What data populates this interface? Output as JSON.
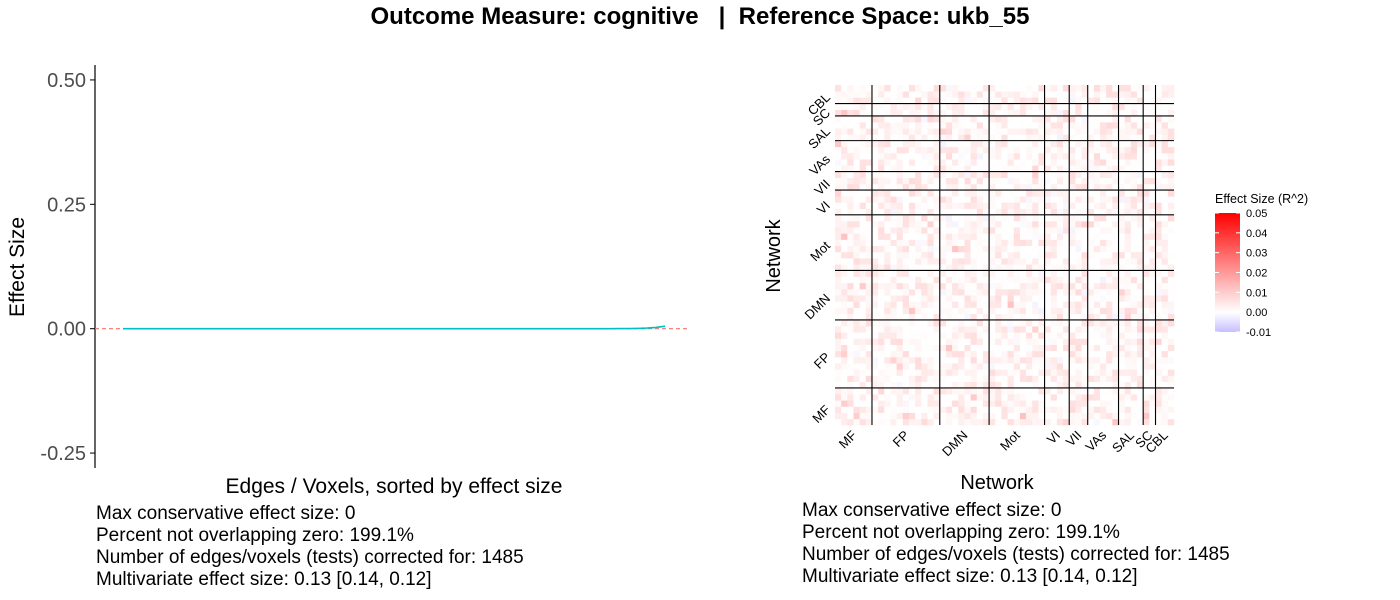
{
  "title": "Outcome Measure: cognitive   |  Reference Space: ukb_55",
  "colors": {
    "zero_line": "#F8766D",
    "ci_line": "#00BFC4",
    "heat_low": "#C7BFFF",
    "heat_mid": "#FFFFFF",
    "heat_high": "#FF0000",
    "grid_line": "#000000"
  },
  "chart_data": [
    {
      "type": "line",
      "title": "",
      "xlabel": "Edges / Voxels, sorted by effect size",
      "ylabel": "Effect Size",
      "ylim": [
        -0.28,
        0.53
      ],
      "yticks": [
        -0.25,
        0.0,
        0.25,
        0.5
      ],
      "ytick_labels": [
        "-0.25",
        "0.00",
        "0.25",
        "0.50"
      ],
      "n_edges": 1485,
      "reference_line": {
        "y": 0,
        "style": "dashed",
        "color": "#F8766D"
      },
      "series": [
        {
          "values_start": 0.0,
          "values_end": 0.0,
          "tail_max": 0.005
        }
      ],
      "legend": "none",
      "grid": false
    },
    {
      "type": "heatmap",
      "title": "",
      "xlabel": "Network",
      "ylabel": "Network",
      "networks": [
        "MF",
        "FP",
        "DMN",
        "Mot",
        "VI",
        "VII",
        "VAs",
        "SAL",
        "SC",
        "CBL"
      ],
      "network_sizes": [
        6,
        11,
        8,
        9,
        4,
        3,
        5,
        4,
        2,
        3
      ],
      "colorbar": {
        "title": "Effect Size (R^2)",
        "range": [
          -0.01,
          0.05
        ],
        "ticks": [
          "0.05",
          "0.04",
          "0.03",
          "0.02",
          "0.01",
          "0.00",
          "-0.01"
        ]
      },
      "value_range_observed": [
        -0.002,
        0.012
      ],
      "legend": "right"
    }
  ],
  "stats_left": [
    "Max conservative effect size: 0",
    "Percent not overlapping zero: 199.1%",
    "Number of edges/voxels (tests) corrected for: 1485",
    "Multivariate effect size: 0.13 [0.14, 0.12]"
  ],
  "stats_right": [
    "Max conservative effect size: 0",
    "Percent not overlapping zero: 199.1%",
    "Number of edges/voxels (tests) corrected for: 1485",
    "Multivariate effect size: 0.13 [0.14, 0.12]"
  ]
}
